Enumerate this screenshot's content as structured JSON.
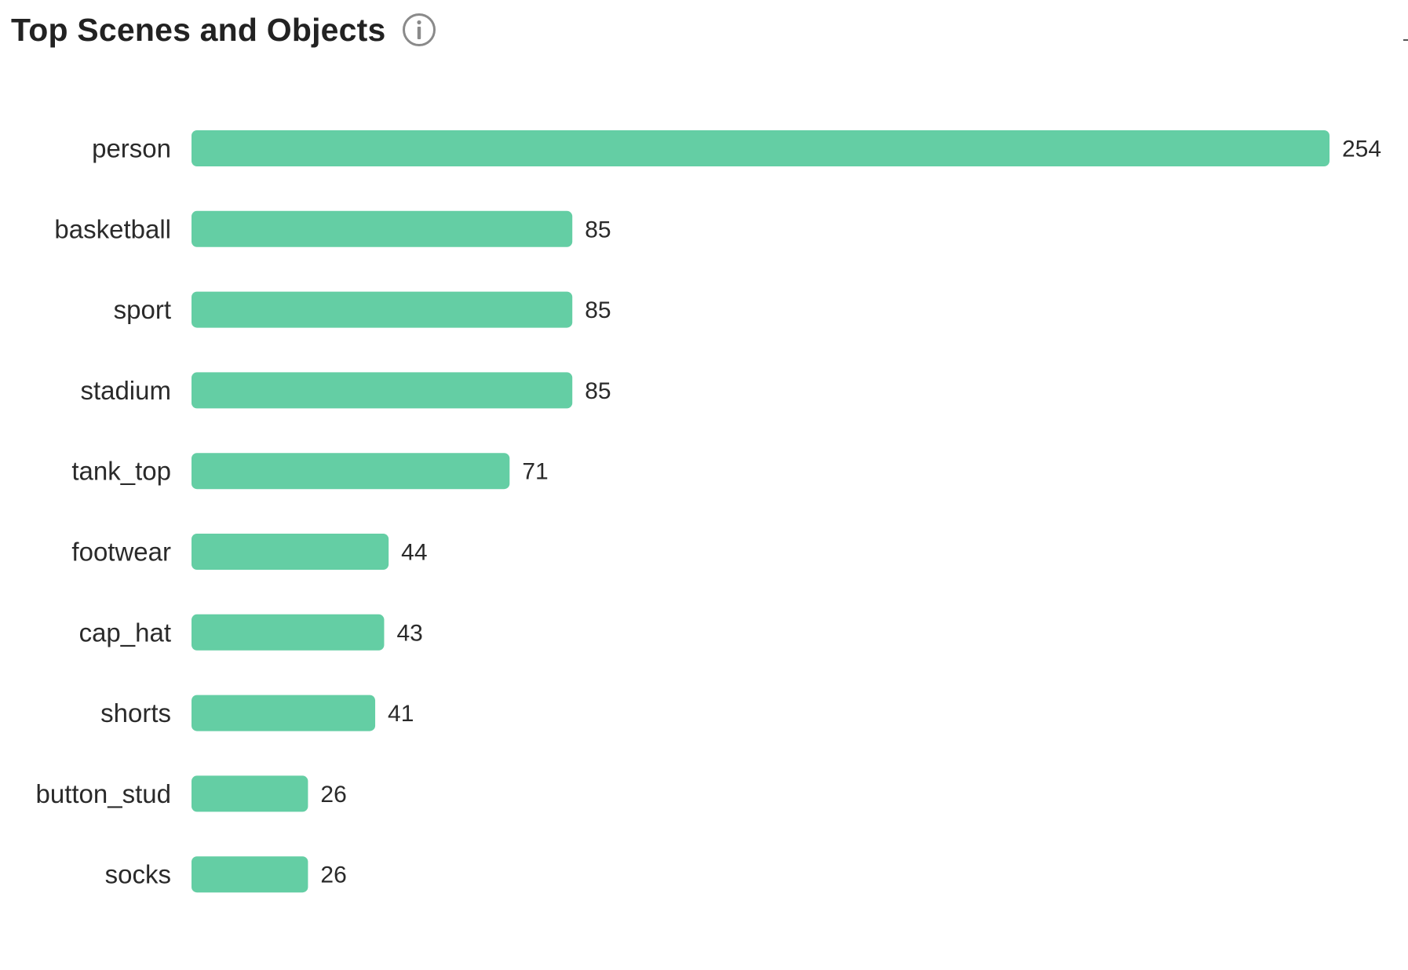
{
  "header": {
    "title": "Top Scenes and Objects",
    "info_icon": "info-icon"
  },
  "colors": {
    "bar": "#64cea4",
    "text": "#2a2a2a",
    "icon": "#8a8a8a"
  },
  "chart_data": {
    "type": "bar",
    "orientation": "horizontal",
    "title": "Top Scenes and Objects",
    "categories": [
      "person",
      "basketball",
      "sport",
      "stadium",
      "tank_top",
      "footwear",
      "cap_hat",
      "shorts",
      "button_stud",
      "socks"
    ],
    "values": [
      254,
      85,
      85,
      85,
      71,
      44,
      43,
      41,
      26,
      26
    ],
    "xlabel": "",
    "ylabel": "",
    "xlim": [
      0,
      254
    ],
    "grid": false,
    "legend": "none",
    "data_labels": true
  }
}
